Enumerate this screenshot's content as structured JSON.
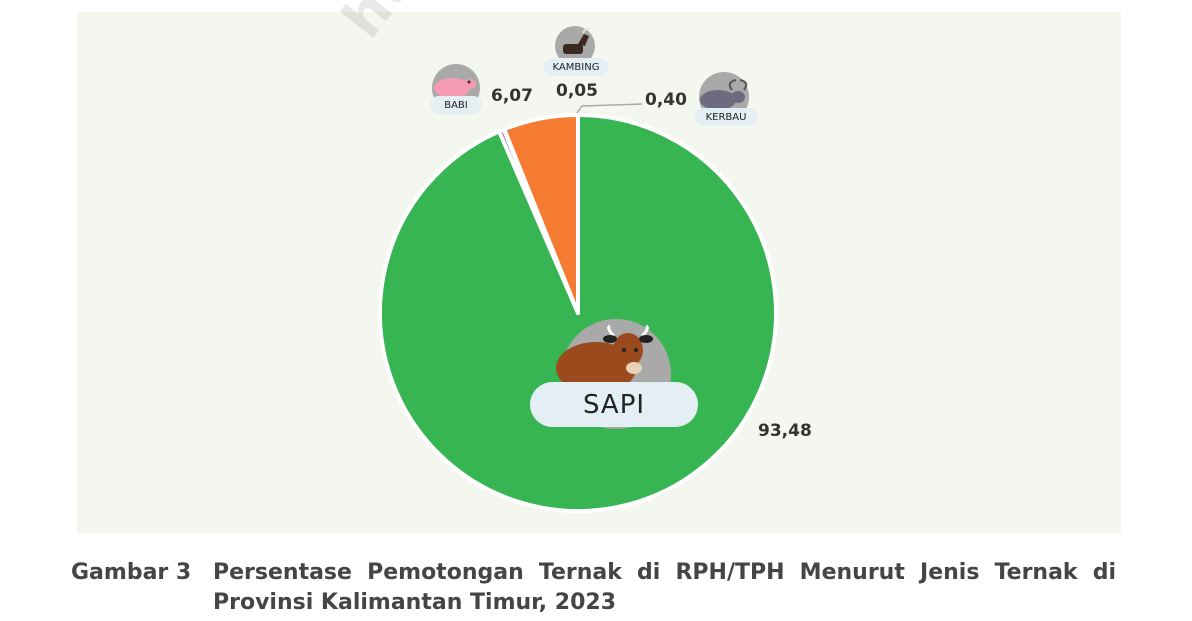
{
  "watermark": "https",
  "chart_data": {
    "type": "pie",
    "title": "",
    "categories": [
      "SAPI",
      "BABI",
      "KAMBING",
      "KERBAU"
    ],
    "values": [
      93.48,
      6.07,
      0.05,
      0.4
    ],
    "value_labels": [
      "93,48",
      "6,07",
      "0,05",
      "0,40"
    ],
    "colors": [
      "#36b552",
      "#f57a32",
      "#7a4b2a",
      "#6a5a8c"
    ],
    "start_order": [
      "SAPI",
      "KERBAU",
      "KAMBING",
      "BABI"
    ],
    "legend": "icons with labels next to slices"
  },
  "icons": {
    "sapi": "cow-icon",
    "babi": "pig-icon",
    "kambing": "goat-icon",
    "kerbau": "buffalo-icon"
  },
  "caption": {
    "number": "Gambar 3",
    "text": "Persentase Pemotongan Ternak di RPH/TPH Menurut Jenis Ternak di Provinsi Kalimantan Timur, 2023"
  }
}
